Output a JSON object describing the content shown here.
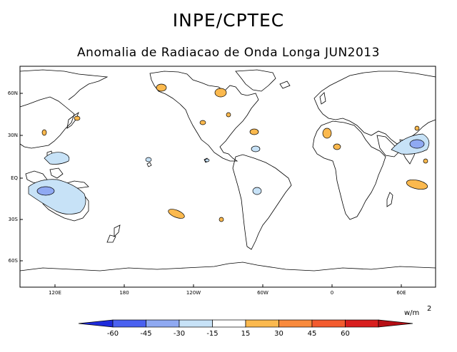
{
  "title": "INPE/CPTEC",
  "subtitle": "Anomalia de Radiacao de Onda Longa JUN2013",
  "units": {
    "base": "w/m",
    "exponent": "2"
  },
  "lat_labels": [
    "60N",
    "30N",
    "EQ",
    "30S",
    "60S"
  ],
  "lon_labels": [
    "120E",
    "180",
    "120W",
    "60W",
    "0",
    "60E"
  ],
  "colorbar": {
    "ticks": [
      "-60",
      "-45",
      "-30",
      "-15",
      "15",
      "30",
      "45",
      "60"
    ],
    "colors": [
      "#1e2bdb",
      "#4a61f0",
      "#8fa9f2",
      "#c7e2f7",
      "#ffffff",
      "#fbb94e",
      "#f98a3c",
      "#f35b2e",
      "#d81e1e",
      "#b50e14"
    ]
  }
}
